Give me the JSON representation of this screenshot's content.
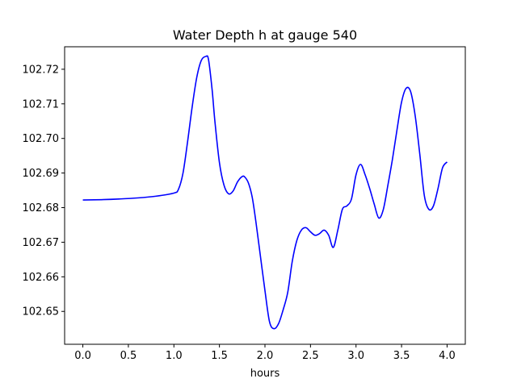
{
  "chart_data": {
    "type": "line",
    "title": "Water Depth h at gauge 540",
    "xlabel": "hours",
    "ylabel": "",
    "xlim": [
      -0.2,
      4.2
    ],
    "ylim": [
      102.6405,
      102.7265
    ],
    "x_ticks": [
      0.0,
      0.5,
      1.0,
      1.5,
      2.0,
      2.5,
      3.0,
      3.5,
      4.0
    ],
    "x_tick_labels": [
      "0.0",
      "0.5",
      "1.0",
      "1.5",
      "2.0",
      "2.5",
      "3.0",
      "3.5",
      "4.0"
    ],
    "y_ticks": [
      102.65,
      102.66,
      102.67,
      102.68,
      102.69,
      102.7,
      102.71,
      102.72
    ],
    "y_tick_labels": [
      "102.65",
      "102.66",
      "102.67",
      "102.68",
      "102.69",
      "102.70",
      "102.71",
      "102.72"
    ],
    "grid": false,
    "series": [
      {
        "color": "#0000ff",
        "x": [
          0.0,
          0.2,
          0.4,
          0.6,
          0.8,
          1.0,
          1.05,
          1.1,
          1.15,
          1.2,
          1.25,
          1.3,
          1.35,
          1.38,
          1.42,
          1.45,
          1.5,
          1.55,
          1.6,
          1.65,
          1.7,
          1.75,
          1.78,
          1.82,
          1.86,
          1.9,
          1.95,
          2.0,
          2.05,
          2.1,
          2.15,
          2.2,
          2.25,
          2.3,
          2.35,
          2.4,
          2.45,
          2.5,
          2.55,
          2.6,
          2.65,
          2.7,
          2.75,
          2.8,
          2.85,
          2.9,
          2.95,
          3.0,
          3.05,
          3.1,
          3.15,
          3.2,
          3.25,
          3.3,
          3.35,
          3.4,
          3.45,
          3.5,
          3.55,
          3.6,
          3.65,
          3.7,
          3.75,
          3.8,
          3.85,
          3.9,
          3.95,
          4.0
        ],
        "y": [
          102.6822,
          102.6823,
          102.6825,
          102.6828,
          102.6833,
          102.6842,
          102.6853,
          102.69,
          102.699,
          102.709,
          102.7175,
          102.7225,
          102.7237,
          102.7228,
          102.714,
          102.705,
          102.693,
          102.6865,
          102.684,
          102.6848,
          102.6875,
          102.689,
          102.6888,
          102.687,
          102.683,
          102.676,
          102.666,
          102.656,
          102.647,
          102.645,
          102.6465,
          102.6505,
          102.6555,
          102.6645,
          102.6705,
          102.6735,
          102.6742,
          102.673,
          102.672,
          102.6725,
          102.6735,
          102.672,
          102.6685,
          102.6735,
          102.6795,
          102.6805,
          102.6825,
          102.6895,
          102.6925,
          102.6895,
          102.6855,
          102.681,
          102.677,
          102.6795,
          102.6865,
          102.694,
          102.7025,
          102.7105,
          102.7145,
          102.7135,
          102.7065,
          102.6955,
          102.6835,
          102.6795,
          102.6805,
          102.6855,
          102.6915,
          102.6932
        ]
      }
    ]
  }
}
